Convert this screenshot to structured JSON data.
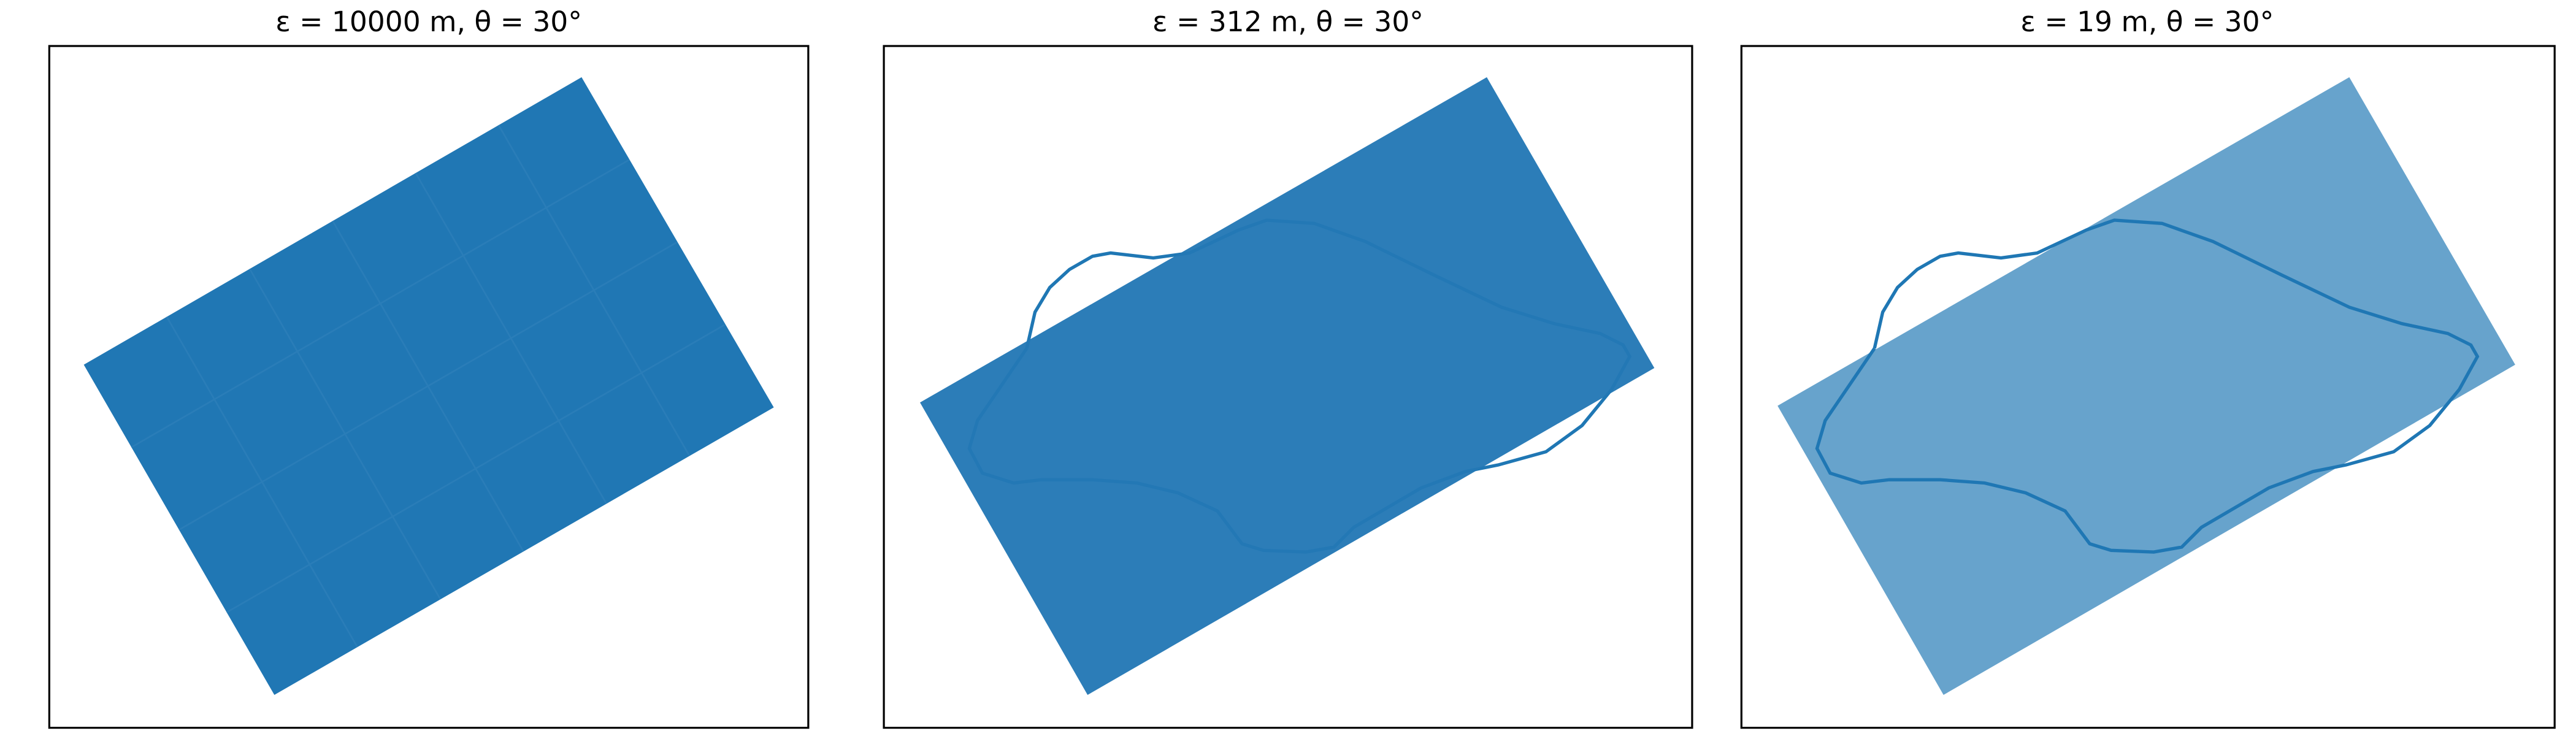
{
  "panels": [
    {
      "title": "ε = 10000 m, θ = 30°"
    },
    {
      "title": "ε = 312 m, θ = 30°"
    },
    {
      "title": "ε = 19 m, θ = 30°"
    }
  ]
}
